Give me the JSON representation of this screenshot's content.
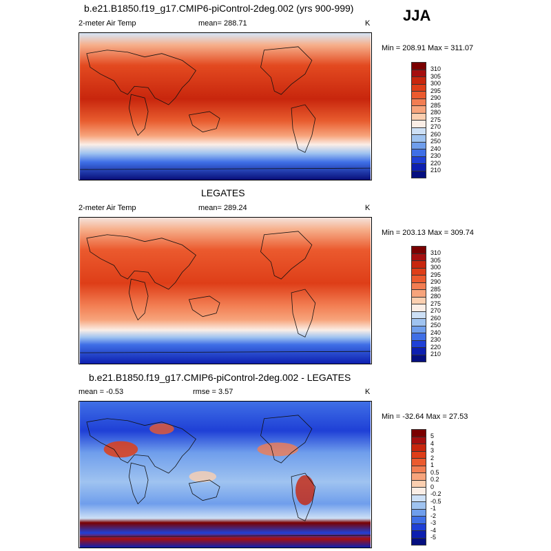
{
  "season": "JJA",
  "panels": [
    {
      "title": "b.e21.B1850.f19_g17.CMIP6-piControl-2deg.002 (yrs 900-999)",
      "left_label": "2-meter Air Temp",
      "center_label": "mean= 288.71",
      "unit": "K",
      "minmax": "Min = 208.91 Max = 311.07",
      "colorbar": {
        "labels": [
          "310",
          "305",
          "300",
          "295",
          "290",
          "285",
          "280",
          "275",
          "270",
          "260",
          "250",
          "240",
          "230",
          "220",
          "210"
        ],
        "colors": [
          "#7a0000",
          "#a50f0f",
          "#c8260d",
          "#de3e18",
          "#eb5a2e",
          "#f27d52",
          "#f7a47c",
          "#fbcfb0",
          "#fbeee6",
          "#cde0f6",
          "#9fc3f0",
          "#6f9eec",
          "#3f6fe6",
          "#1f40d6",
          "#0d1fb0",
          "#050f80"
        ]
      },
      "map_palette": {
        "ocean_warm": "#d73a1a",
        "ocean_mid": "#f29168",
        "cold": "#1f40d6",
        "polar": "#080f7a"
      }
    },
    {
      "title": "LEGATES",
      "left_label": "2-meter Air Temp",
      "center_label": "mean= 289.24",
      "unit": "K",
      "minmax": "Min = 203.13 Max = 309.74",
      "colorbar": {
        "labels": [
          "310",
          "305",
          "300",
          "295",
          "290",
          "285",
          "280",
          "275",
          "270",
          "260",
          "250",
          "240",
          "230",
          "220",
          "210"
        ],
        "colors": [
          "#7a0000",
          "#a50f0f",
          "#c8260d",
          "#de3e18",
          "#eb5a2e",
          "#f27d52",
          "#f7a47c",
          "#fbcfb0",
          "#fbeee6",
          "#cde0f6",
          "#9fc3f0",
          "#6f9eec",
          "#3f6fe6",
          "#1f40d6",
          "#0d1fb0",
          "#050f80"
        ]
      },
      "map_palette": {
        "ocean_warm": "#e0522a",
        "ocean_mid": "#f5a37e",
        "cold": "#3f6fe6",
        "polar": "#1020a8"
      }
    },
    {
      "title": "b.e21.B1850.f19_g17.CMIP6-piControl-2deg.002 - LEGATES",
      "left_label": "mean =  -0.53",
      "center_label": "rmse =   3.57",
      "unit": "K",
      "minmax": "Min = -32.64 Max =  27.53",
      "colorbar": {
        "labels": [
          "5",
          "4",
          "3",
          "2",
          "1",
          "0.5",
          "0.2",
          "0",
          "-0.2",
          "-0.5",
          "-1",
          "-2",
          "-3",
          "-4",
          "-5"
        ],
        "colors": [
          "#7a0000",
          "#a50f0f",
          "#c8260d",
          "#de3e18",
          "#eb5a2e",
          "#f27d52",
          "#f7a47c",
          "#fbcfb0",
          "#fbeee6",
          "#cde0f6",
          "#9fc3f0",
          "#6f9eec",
          "#3f6fe6",
          "#1f40d6",
          "#0d1fb0",
          "#050f80"
        ]
      },
      "map_palette": {
        "ocean_warm": "#e95a2f",
        "ocean_mid": "#8fb5ee",
        "cold": "#2d55e0",
        "polar": "#8a0000"
      }
    }
  ]
}
